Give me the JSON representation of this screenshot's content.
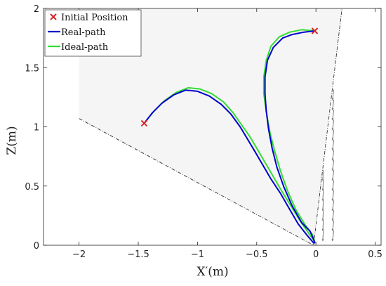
{
  "chart_data": {
    "type": "line",
    "title": "",
    "xlabel": "X′(m)",
    "ylabel": "Z(m)",
    "xlim": [
      -2.3,
      0.55
    ],
    "ylim": [
      0,
      2
    ],
    "xticks": [
      -2,
      -1.5,
      -1,
      -0.5,
      0,
      0.5
    ],
    "xtick_labels": [
      "−2",
      "−1.5",
      "−1",
      "−0.5",
      "0",
      "0.5"
    ],
    "yticks": [
      0,
      0.5,
      1,
      1.5,
      2
    ],
    "ytick_labels": [
      "0",
      "0.5",
      "1",
      "1.5",
      "2"
    ],
    "grid": false,
    "legend_position": "top-left",
    "legend": [
      {
        "label": "Initial Position",
        "marker": "x",
        "color": "#d62728"
      },
      {
        "label": "Real-path",
        "color": "#0000cc"
      },
      {
        "label": "Ideal-path",
        "color": "#33dd33"
      }
    ],
    "initial_positions": [
      {
        "x": -1.45,
        "y": 1.03
      },
      {
        "x": -0.01,
        "y": 1.81
      }
    ],
    "series": [
      {
        "name": "Real-path",
        "color": "#0000cc",
        "paths": [
          [
            [
              -1.45,
              1.03
            ],
            [
              -1.38,
              1.12
            ],
            [
              -1.3,
              1.2
            ],
            [
              -1.2,
              1.27
            ],
            [
              -1.1,
              1.31
            ],
            [
              -1.0,
              1.3
            ],
            [
              -0.9,
              1.26
            ],
            [
              -0.8,
              1.19
            ],
            [
              -0.72,
              1.11
            ],
            [
              -0.64,
              1.0
            ],
            [
              -0.58,
              0.9
            ],
            [
              -0.52,
              0.8
            ],
            [
              -0.45,
              0.68
            ],
            [
              -0.38,
              0.56
            ],
            [
              -0.3,
              0.44
            ],
            [
              -0.22,
              0.3
            ],
            [
              -0.15,
              0.18
            ],
            [
              -0.08,
              0.09
            ],
            [
              -0.02,
              0.02
            ]
          ],
          [
            [
              -0.01,
              1.81
            ],
            [
              -0.1,
              1.8
            ],
            [
              -0.2,
              1.78
            ],
            [
              -0.28,
              1.75
            ],
            [
              -0.36,
              1.67
            ],
            [
              -0.41,
              1.56
            ],
            [
              -0.43,
              1.42
            ],
            [
              -0.43,
              1.28
            ],
            [
              -0.42,
              1.14
            ],
            [
              -0.4,
              0.98
            ],
            [
              -0.37,
              0.82
            ],
            [
              -0.33,
              0.66
            ],
            [
              -0.27,
              0.49
            ],
            [
              -0.2,
              0.33
            ],
            [
              -0.12,
              0.19
            ],
            [
              -0.05,
              0.12
            ],
            [
              -0.02,
              0.05
            ],
            [
              -0.01,
              0.02
            ]
          ]
        ]
      },
      {
        "name": "Ideal-path",
        "color": "#33dd33",
        "paths": [
          [
            [
              -1.45,
              1.03
            ],
            [
              -1.37,
              1.13
            ],
            [
              -1.28,
              1.22
            ],
            [
              -1.18,
              1.29
            ],
            [
              -1.08,
              1.33
            ],
            [
              -0.98,
              1.32
            ],
            [
              -0.88,
              1.28
            ],
            [
              -0.78,
              1.21
            ],
            [
              -0.7,
              1.12
            ],
            [
              -0.63,
              1.02
            ],
            [
              -0.56,
              0.92
            ],
            [
              -0.5,
              0.82
            ],
            [
              -0.43,
              0.7
            ],
            [
              -0.36,
              0.58
            ],
            [
              -0.29,
              0.46
            ],
            [
              -0.21,
              0.33
            ],
            [
              -0.13,
              0.2
            ],
            [
              -0.06,
              0.1
            ],
            [
              -0.01,
              0.03
            ]
          ],
          [
            [
              -0.01,
              1.81
            ],
            [
              -0.12,
              1.82
            ],
            [
              -0.22,
              1.8
            ],
            [
              -0.31,
              1.76
            ],
            [
              -0.38,
              1.68
            ],
            [
              -0.42,
              1.56
            ],
            [
              -0.44,
              1.42
            ],
            [
              -0.44,
              1.28
            ],
            [
              -0.42,
              1.13
            ],
            [
              -0.39,
              0.96
            ],
            [
              -0.35,
              0.8
            ],
            [
              -0.3,
              0.63
            ],
            [
              -0.24,
              0.46
            ],
            [
              -0.17,
              0.3
            ],
            [
              -0.09,
              0.17
            ],
            [
              -0.03,
              0.09
            ],
            [
              -0.01,
              0.03
            ]
          ]
        ]
      }
    ]
  }
}
